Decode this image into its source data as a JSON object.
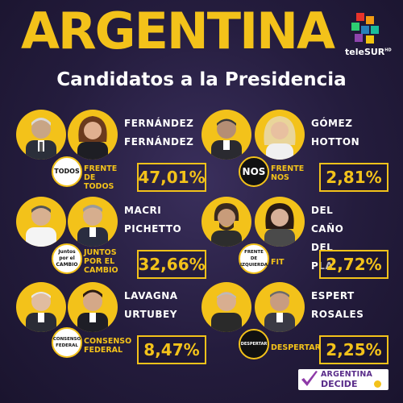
{
  "header": {
    "title": "ARGENTINA",
    "subtitle": "Candidatos a la Presidencia",
    "brand": "teleSUR",
    "brand_suffix": "HD"
  },
  "colors": {
    "accent": "#f3c21a",
    "background": "#241c3d",
    "text": "#ffffff",
    "footer_purple": "#5a2d8a"
  },
  "candidates": [
    {
      "president": "FERNÁNDEZ",
      "vice": "FERNÁNDEZ",
      "party_logo": "TODOS",
      "party_line1": "FRENTE",
      "party_line2": "DE TODOS",
      "percent": "47,01%"
    },
    {
      "president": "GÓMEZ",
      "vice": "HOTTON",
      "party_logo": "NOS",
      "party_line1": "FRENTE",
      "party_line2": "NOS",
      "percent": "2,81%"
    },
    {
      "president": "MACRI",
      "vice": "PICHETTO",
      "party_logo": "Juntos por el CAMBIO",
      "party_line1": "JUNTOS",
      "party_line2": "POR EL",
      "party_line3": "CAMBIO",
      "percent": "32,66%"
    },
    {
      "president": "DEL CAÑO",
      "vice": "DEL PLA",
      "party_logo": "FRENTE DE IZQUIERDA",
      "party_line1": "FIT",
      "percent": "2,72%"
    },
    {
      "president": "LAVAGNA",
      "vice": "URTUBEY",
      "party_logo": "CONSENSO FEDERAL",
      "party_line1": "CONSENSO",
      "party_line2": "FEDERAL",
      "percent": "8,47%"
    },
    {
      "president": "ESPERT",
      "vice": "ROSALES",
      "party_logo": "DESPERTAR",
      "party_line1": "DESPERTAR",
      "percent": "2,25%"
    }
  ],
  "footer": {
    "line1": "ARGENTINA",
    "line2": "DECIDE"
  }
}
